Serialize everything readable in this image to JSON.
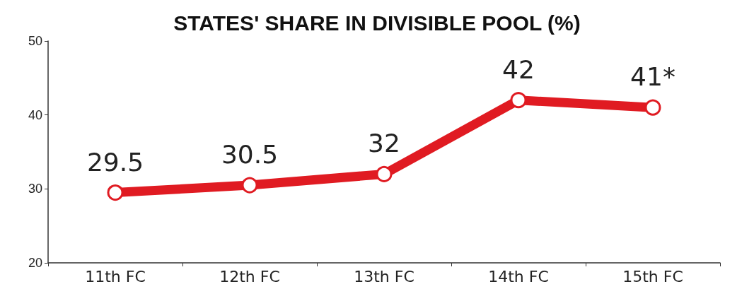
{
  "chart_data": {
    "type": "line",
    "title": "STATES' SHARE IN DIVISIBLE POOL (%)",
    "categories": [
      "11th FC",
      "12th FC",
      "13th FC",
      "14th FC",
      "15th FC"
    ],
    "series": [
      {
        "color": "#e01b22",
        "values": [
          29.5,
          30.5,
          32,
          42,
          41
        ],
        "value_labels": [
          "29.5",
          "30.5",
          "32",
          "42",
          "41*"
        ]
      }
    ],
    "ylim": [
      20,
      50
    ],
    "yticks": [
      20,
      30,
      40,
      50
    ],
    "grid": false,
    "marker": "circle",
    "line_style": "solid"
  }
}
